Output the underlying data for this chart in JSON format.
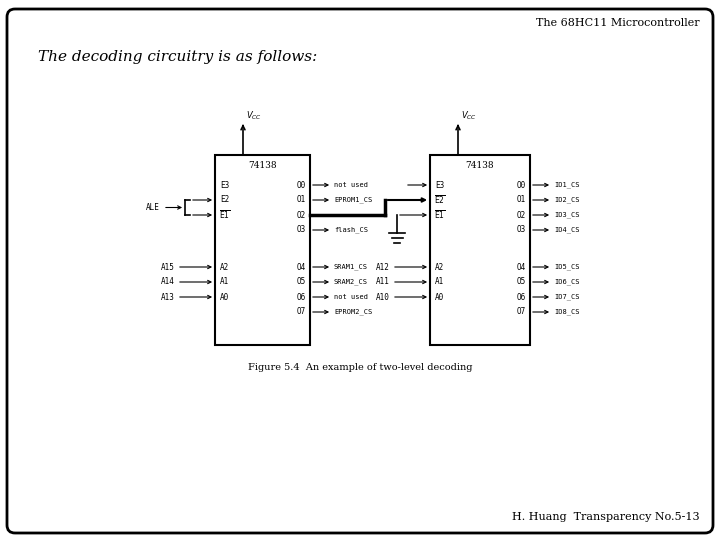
{
  "title": "The 68HC11 Microcontroller",
  "subtitle": "The decoding circuitry is as follows:",
  "footer": "H. Huang  Transparency No.5-13",
  "fig_caption": "Figure 5.4  An example of two-level decoding",
  "bg_color": "#ffffff",
  "chip1_label": "74138",
  "chip2_label": "74138",
  "out_signals_c1": [
    "not used",
    "EPROM1_CS",
    "",
    "flash_CS",
    "SRAM1_CS",
    "SRAM2_CS",
    "not used",
    "EPROM2_CS"
  ],
  "out_signals_c2": [
    "IO1_CS",
    "IO2_CS",
    "IO3_CS",
    "IO4_CS",
    "IO5_CS",
    "IO6_CS",
    "IO7_CS",
    "IO8_CS"
  ]
}
